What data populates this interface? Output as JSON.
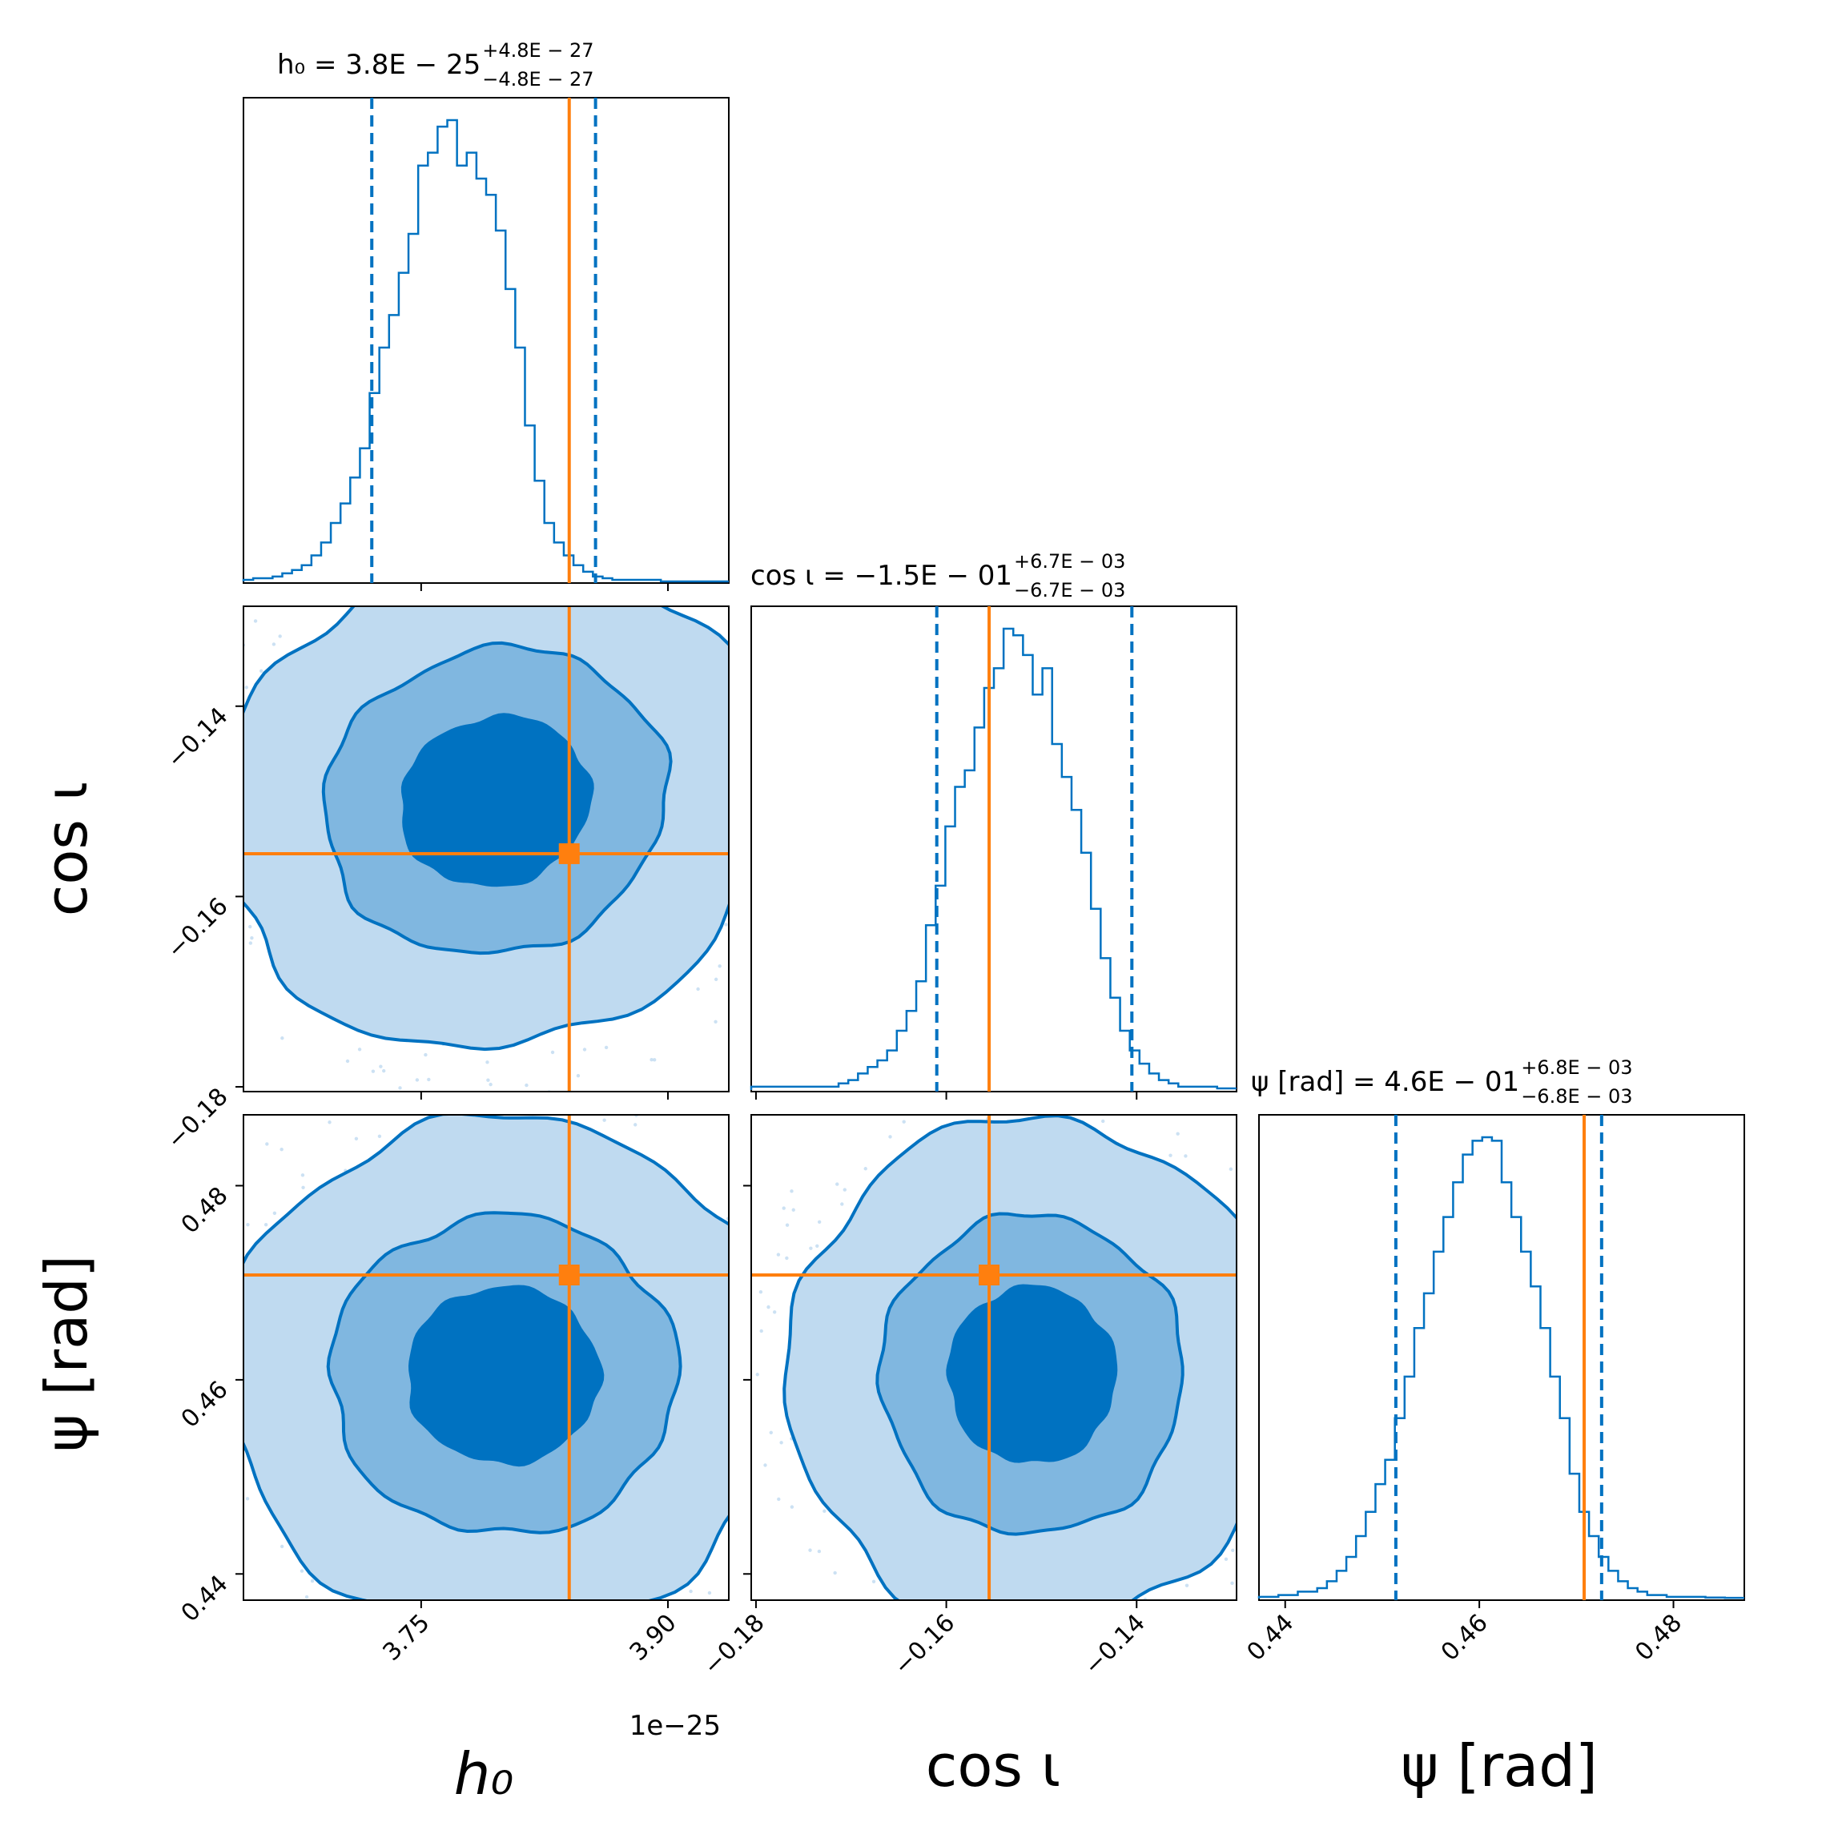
{
  "colors": {
    "posterior": "#0072c1",
    "contour_1": "#bfdaf0",
    "contour_2": "#80b7e0",
    "contour_3": "#0072c1",
    "truth": "#ff7f0e",
    "frame": "#000000"
  },
  "chart_data": {
    "type": "corner",
    "parameters": [
      {
        "key": "h0",
        "axis_label": "h₀",
        "title_main": "h₀ = 3.8E − 25",
        "title_sup": "+4.8E − 27",
        "title_sub": "−4.8E − 27",
        "range": [
          3.642,
          3.937
        ],
        "ticks": [
          3.75,
          3.9
        ],
        "tick_labels": [
          "3.75",
          "3.90"
        ],
        "offset_label": "1e−25",
        "median": 3.8,
        "quantile_lines": [
          3.72,
          3.856
        ],
        "truth": 3.84,
        "histogram": {
          "bin_start": 3.642,
          "bin_width": 0.0059,
          "counts": [
            0.5,
            1,
            1,
            1.5,
            2.5,
            3.5,
            5,
            8,
            12,
            18,
            24,
            32,
            41,
            58,
            72,
            82,
            95,
            107,
            128,
            132,
            140,
            142,
            128,
            132,
            124,
            119,
            108,
            90,
            72,
            48,
            31,
            18,
            12,
            8,
            5,
            3,
            1.5,
            1,
            0.5,
            0.5,
            0.5,
            0.5,
            0.5,
            0,
            0,
            0,
            0,
            0,
            0,
            0
          ]
        }
      },
      {
        "key": "cosi",
        "axis_label": "cos ι",
        "title_main": "cos ι = −1.5E − 01",
        "title_sup": "+6.7E − 03",
        "title_sub": "−6.7E − 03",
        "range": [
          -0.1805,
          -0.1295
        ],
        "ticks": [
          -0.18,
          -0.16,
          -0.14
        ],
        "tick_labels": [
          "−0.18",
          "−0.16",
          "−0.14"
        ],
        "median": -0.15,
        "quantile_lines": [
          -0.161,
          -0.1405
        ],
        "truth": -0.1555,
        "histogram": {
          "bin_start": -0.1805,
          "bin_width": 0.00102,
          "counts": [
            1,
            1,
            1,
            1,
            1,
            1,
            1,
            1,
            1,
            2,
            3,
            5,
            7,
            9,
            12,
            18,
            24,
            33,
            50,
            62,
            80,
            92,
            97,
            110,
            122,
            128,
            140,
            138,
            132,
            120,
            128,
            105,
            95,
            85,
            72,
            55,
            40,
            28,
            18,
            12,
            8,
            5,
            3,
            2,
            1,
            1,
            1,
            1,
            0.5,
            0.5
          ]
        }
      },
      {
        "key": "psi",
        "axis_label": "ψ [rad]",
        "title_main": "ψ [rad] = 4.6E − 01",
        "title_sup": "+6.8E − 03",
        "title_sub": "−6.8E − 03",
        "range": [
          0.4373,
          0.4873
        ],
        "ticks": [
          0.44,
          0.46,
          0.48
        ],
        "tick_labels": [
          "0.44",
          "0.46",
          "0.48"
        ],
        "median": 0.46,
        "quantile_lines": [
          0.4514,
          0.4726
        ],
        "truth": 0.4708,
        "histogram": {
          "bin_start": 0.4373,
          "bin_width": 0.001,
          "counts": [
            0.5,
            0.5,
            1,
            1,
            2,
            2,
            3,
            5,
            8,
            12,
            18,
            25,
            33,
            40,
            52,
            64,
            78,
            88,
            100,
            110,
            120,
            128,
            132,
            133,
            132,
            120,
            110,
            100,
            90,
            78,
            64,
            52,
            36,
            25,
            18,
            12,
            8,
            5,
            3,
            2,
            1,
            1,
            0.5,
            0.5,
            0.5,
            0.5,
            0.3,
            0.3,
            0.2,
            0.2
          ]
        }
      }
    ],
    "truth_point": {
      "h0": 3.84,
      "cosi": -0.1555,
      "psi": 0.4708
    },
    "contour_pairs": [
      {
        "x": "h0",
        "y": "cosi",
        "center": [
          3.795,
          -0.15
        ],
        "rho": 0.45
      },
      {
        "x": "h0",
        "y": "psi",
        "center": [
          3.8,
          0.4605
        ],
        "rho": 0.0
      },
      {
        "x": "cosi",
        "y": "psi",
        "center": [
          -0.151,
          0.4605
        ],
        "rho": 0.0
      }
    ],
    "contour_levels_sigma": [
      0.85,
      1.55,
      2.5
    ]
  }
}
